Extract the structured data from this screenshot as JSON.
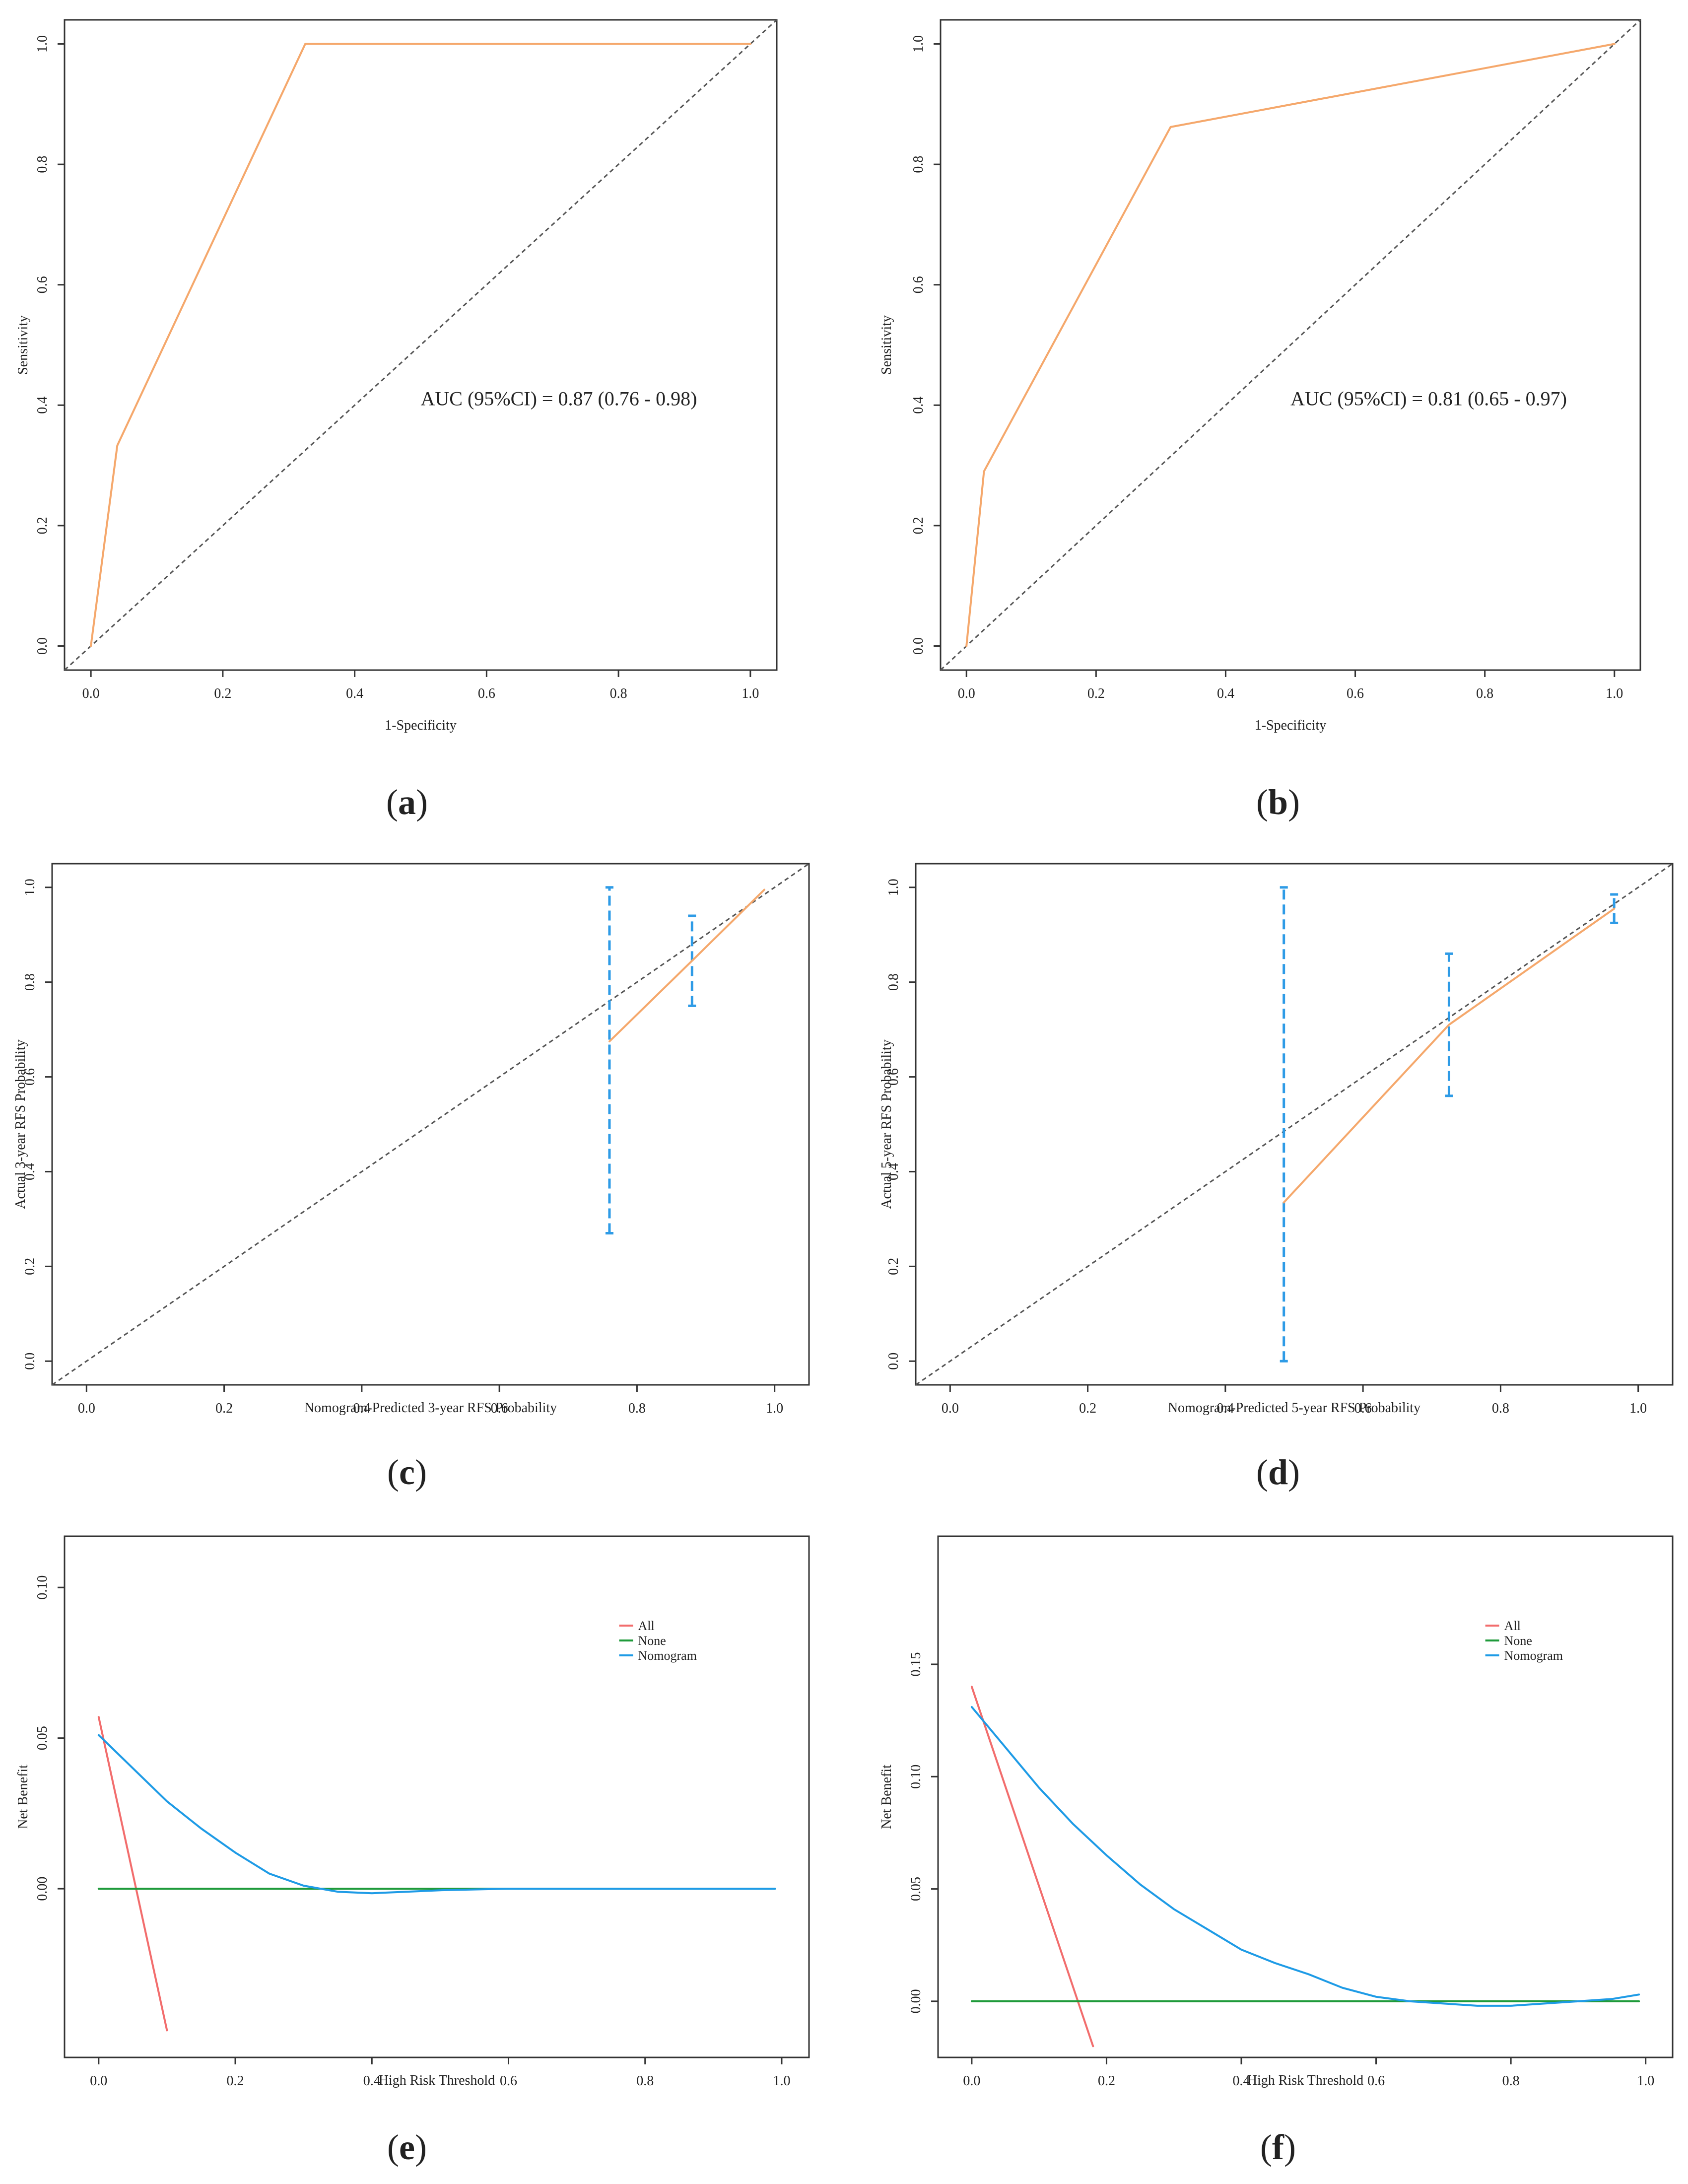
{
  "colors": {
    "roc": "#F5A86C",
    "calibration": "#F5A86C",
    "errorbar": "#2E9BE6",
    "all": "#F26D6D",
    "none": "#1E9A3A",
    "nomogram": "#1E9BE6",
    "diagonal": "#555555",
    "axis": "#333333"
  },
  "chart_data": [
    {
      "type": "line",
      "id": "a",
      "panel_label": "(a)",
      "label_letter": "a",
      "title": "",
      "xlabel": "1-Specificity",
      "ylabel": "Sensitivity",
      "xlim": [
        -0.04,
        1.04
      ],
      "ylim": [
        -0.04,
        1.04
      ],
      "xticks": [
        0.0,
        0.2,
        0.4,
        0.6,
        0.8,
        1.0
      ],
      "xtick_labels": [
        "0.0",
        "0.2",
        "0.4",
        "0.6",
        "0.8",
        "1.0"
      ],
      "yticks": [
        0.0,
        0.2,
        0.4,
        0.6,
        0.8,
        1.0
      ],
      "ytick_labels": [
        "0.0",
        "0.2",
        "0.4",
        "0.6",
        "0.8",
        "1.0"
      ],
      "diagonal": true,
      "series": [
        {
          "name": "ROC",
          "color_key": "roc",
          "x": [
            0.0,
            0.04,
            0.325,
            1.0
          ],
          "y": [
            0.0,
            0.333,
            1.0,
            1.0
          ]
        }
      ],
      "annotation": {
        "text": "AUC (95%CI) = 0.87 (0.76 - 0.98)",
        "x": 0.5,
        "y": 0.4
      }
    },
    {
      "type": "line",
      "id": "b",
      "panel_label": "(b)",
      "label_letter": "b",
      "title": "",
      "xlabel": "1-Specificity",
      "ylabel": "Sensitivity",
      "xlim": [
        -0.04,
        1.04
      ],
      "ylim": [
        -0.04,
        1.04
      ],
      "xticks": [
        0.0,
        0.2,
        0.4,
        0.6,
        0.8,
        1.0
      ],
      "xtick_labels": [
        "0.0",
        "0.2",
        "0.4",
        "0.6",
        "0.8",
        "1.0"
      ],
      "yticks": [
        0.0,
        0.2,
        0.4,
        0.6,
        0.8,
        1.0
      ],
      "ytick_labels": [
        "0.0",
        "0.2",
        "0.4",
        "0.6",
        "0.8",
        "1.0"
      ],
      "diagonal": true,
      "series": [
        {
          "name": "ROC",
          "color_key": "roc",
          "x": [
            0.0,
            0.027,
            0.315,
            1.0
          ],
          "y": [
            0.0,
            0.29,
            0.862,
            1.0
          ]
        }
      ],
      "annotation": {
        "text": "AUC (95%CI) = 0.81 (0.65 - 0.97)",
        "x": 0.5,
        "y": 0.4
      }
    },
    {
      "type": "line",
      "id": "c",
      "panel_label": "(c)",
      "label_letter": "c",
      "title": "",
      "xlabel": "Nomogram-Predicted 3-year RFS Probability",
      "ylabel": "Actual 3-year RFS Probability",
      "xlim": [
        -0.05,
        1.05
      ],
      "ylim": [
        -0.05,
        1.05
      ],
      "xticks": [
        0.0,
        0.2,
        0.4,
        0.6,
        0.8,
        1.0
      ],
      "xtick_labels": [
        "0.0",
        "0.2",
        "0.4",
        "0.6",
        "0.8",
        "1.0"
      ],
      "yticks": [
        0.0,
        0.2,
        0.4,
        0.6,
        0.8,
        1.0
      ],
      "ytick_labels": [
        "0.0",
        "0.2",
        "0.4",
        "0.6",
        "0.8",
        "1.0"
      ],
      "diagonal": true,
      "series": [
        {
          "name": "Calibration",
          "color_key": "calibration",
          "x": [
            0.76,
            0.88,
            0.985
          ],
          "y": [
            0.675,
            0.845,
            0.995
          ]
        }
      ],
      "errorbars": [
        {
          "x": 0.76,
          "lo": 0.27,
          "hi": 1.0
        },
        {
          "x": 0.88,
          "lo": 0.75,
          "hi": 0.94
        }
      ]
    },
    {
      "type": "line",
      "id": "d",
      "panel_label": "(d)",
      "label_letter": "d",
      "title": "",
      "xlabel": "Nomogram-Predicted 5-year RFS Probability",
      "ylabel": "Actual 5-year RFS Probability",
      "xlim": [
        -0.05,
        1.05
      ],
      "ylim": [
        -0.05,
        1.05
      ],
      "xticks": [
        0.0,
        0.2,
        0.4,
        0.6,
        0.8,
        1.0
      ],
      "xtick_labels": [
        "0.0",
        "0.2",
        "0.4",
        "0.6",
        "0.8",
        "1.0"
      ],
      "yticks": [
        0.0,
        0.2,
        0.4,
        0.6,
        0.8,
        1.0
      ],
      "ytick_labels": [
        "0.0",
        "0.2",
        "0.4",
        "0.6",
        "0.8",
        "1.0"
      ],
      "diagonal": true,
      "series": [
        {
          "name": "Calibration",
          "color_key": "calibration",
          "x": [
            0.485,
            0.725,
            0.965
          ],
          "y": [
            0.335,
            0.71,
            0.955
          ]
        }
      ],
      "errorbars": [
        {
          "x": 0.485,
          "lo": 0.0,
          "hi": 1.0
        },
        {
          "x": 0.725,
          "lo": 0.56,
          "hi": 0.86
        },
        {
          "x": 0.965,
          "lo": 0.925,
          "hi": 0.985
        }
      ]
    },
    {
      "type": "line",
      "id": "e",
      "panel_label": "(e)",
      "label_letter": "e",
      "title": "",
      "xlabel": "High Risk Threshold",
      "ylabel": "Net Benefit",
      "xlim": [
        -0.05,
        1.04
      ],
      "ylim": [
        -0.056,
        0.117
      ],
      "xticks": [
        0.0,
        0.2,
        0.4,
        0.6,
        0.8,
        1.0
      ],
      "xtick_labels": [
        "0.0",
        "0.2",
        "0.4",
        "0.6",
        "0.8",
        "1.0"
      ],
      "yticks": [
        0.0,
        0.05,
        0.1
      ],
      "ytick_labels": [
        "0.00",
        "0.05",
        "0.10"
      ],
      "diagonal": false,
      "legend": {
        "position": "top-right",
        "entries": [
          {
            "name": "All",
            "color_key": "all"
          },
          {
            "name": "None",
            "color_key": "none"
          },
          {
            "name": "Nomogram",
            "color_key": "nomogram"
          }
        ]
      },
      "series": [
        {
          "name": "All",
          "color_key": "all",
          "x": [
            0.0,
            0.1
          ],
          "y": [
            0.057,
            -0.047
          ]
        },
        {
          "name": "None",
          "color_key": "none",
          "x": [
            0.0,
            0.99
          ],
          "y": [
            0.0,
            0.0
          ]
        },
        {
          "name": "Nomogram",
          "color_key": "nomogram",
          "x": [
            0.0,
            0.05,
            0.1,
            0.15,
            0.2,
            0.25,
            0.3,
            0.35,
            0.4,
            0.45,
            0.5,
            0.6,
            0.7,
            0.8,
            0.9,
            0.99
          ],
          "y": [
            0.051,
            0.04,
            0.029,
            0.02,
            0.012,
            0.005,
            0.001,
            -0.001,
            -0.0015,
            -0.001,
            -0.0005,
            0.0,
            0.0,
            0.0,
            0.0,
            0.0
          ]
        }
      ]
    },
    {
      "type": "line",
      "id": "f",
      "panel_label": "(f)",
      "label_letter": "f",
      "title": "",
      "xlabel": "High Risk Threshold",
      "ylabel": "Net Benefit",
      "xlim": [
        -0.05,
        1.04
      ],
      "ylim": [
        -0.025,
        0.207
      ],
      "xticks": [
        0.0,
        0.2,
        0.4,
        0.6,
        0.8,
        1.0
      ],
      "xtick_labels": [
        "0.0",
        "0.2",
        "0.4",
        "0.6",
        "0.8",
        "1.0"
      ],
      "yticks": [
        0.0,
        0.05,
        0.1,
        0.15
      ],
      "ytick_labels": [
        "0.00",
        "0.05",
        "0.10",
        "0.15"
      ],
      "diagonal": false,
      "legend": {
        "position": "top-right",
        "entries": [
          {
            "name": "All",
            "color_key": "all"
          },
          {
            "name": "None",
            "color_key": "none"
          },
          {
            "name": "Nomogram",
            "color_key": "nomogram"
          }
        ]
      },
      "series": [
        {
          "name": "All",
          "color_key": "all",
          "x": [
            0.0,
            0.18
          ],
          "y": [
            0.14,
            -0.02
          ]
        },
        {
          "name": "None",
          "color_key": "none",
          "x": [
            0.0,
            0.99
          ],
          "y": [
            0.0,
            0.0
          ]
        },
        {
          "name": "Nomogram",
          "color_key": "nomogram",
          "x": [
            0.0,
            0.05,
            0.1,
            0.15,
            0.2,
            0.25,
            0.3,
            0.35,
            0.4,
            0.45,
            0.5,
            0.55,
            0.6,
            0.65,
            0.7,
            0.75,
            0.8,
            0.85,
            0.9,
            0.95,
            0.99
          ],
          "y": [
            0.131,
            0.113,
            0.095,
            0.079,
            0.065,
            0.052,
            0.041,
            0.032,
            0.023,
            0.017,
            0.012,
            0.006,
            0.002,
            0.0,
            -0.001,
            -0.002,
            -0.002,
            -0.001,
            0.0,
            0.001,
            0.003
          ]
        }
      ]
    }
  ]
}
